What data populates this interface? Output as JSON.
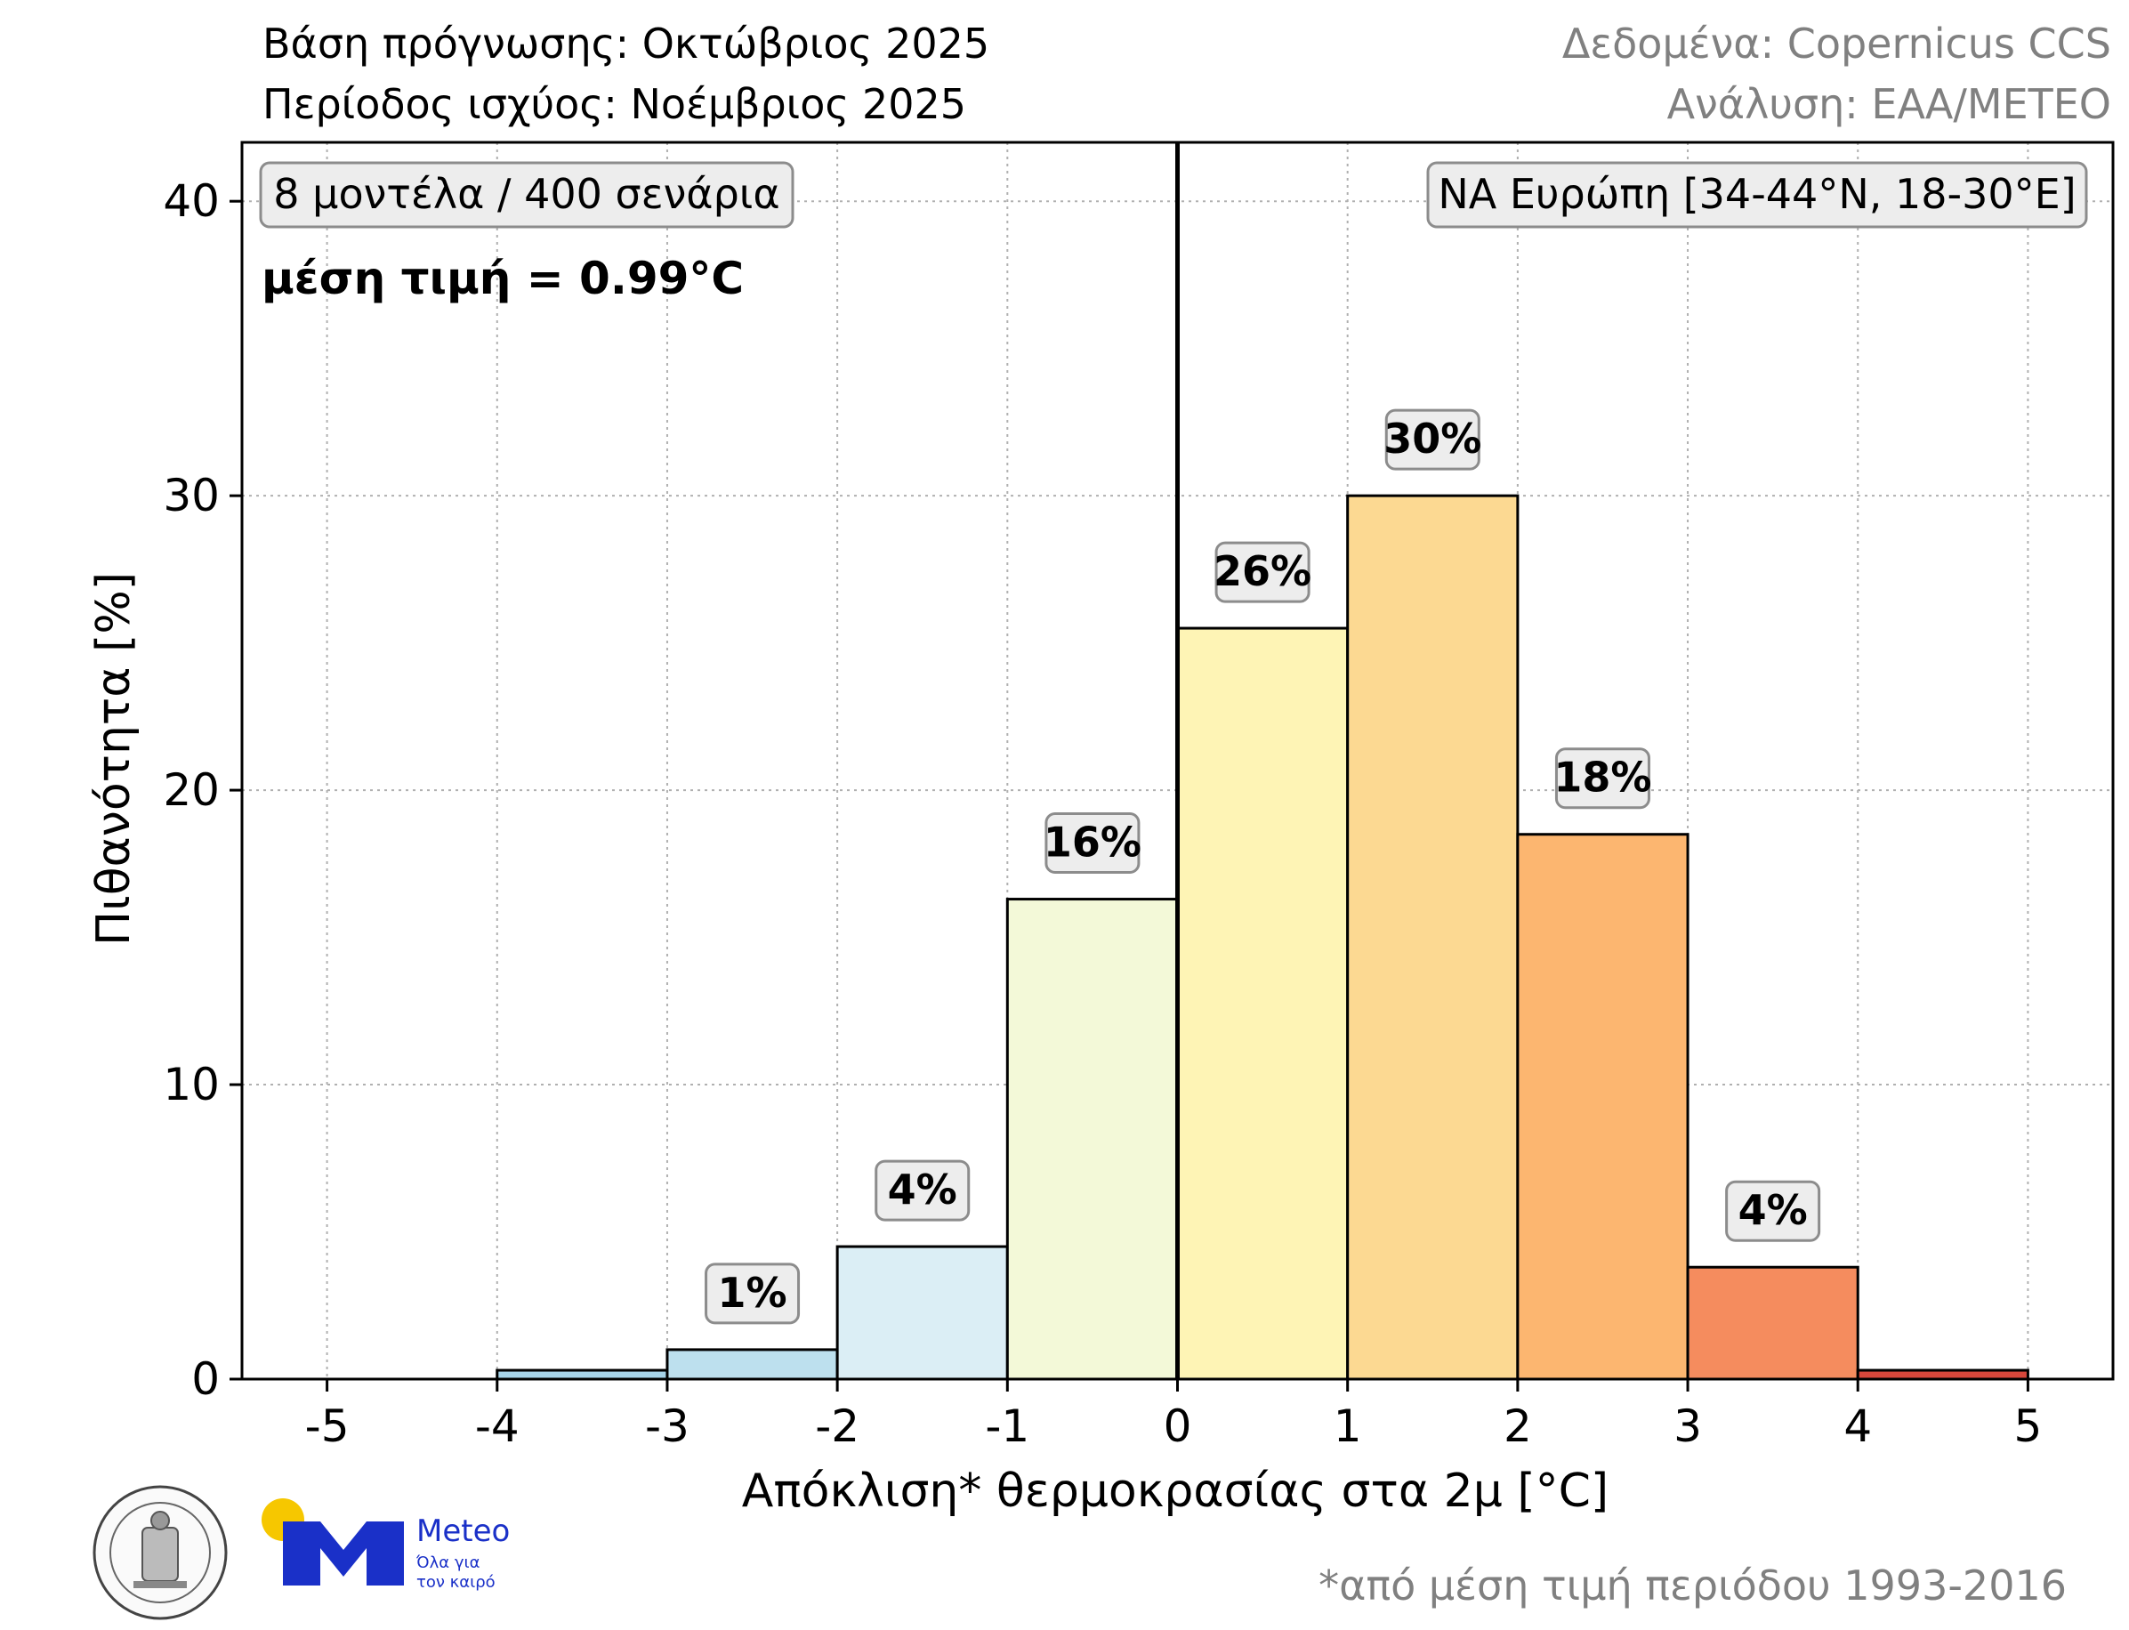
{
  "header": {
    "forecast_base": "Βάση πρόγνωσης: Οκτώβριος 2025",
    "valid_period": "Περίοδος ισχύος: Νοέμβριος 2025",
    "data_source": "Δεδομένα: Copernicus CCS",
    "analysis": "Ανάλυση: ΕΑΑ/ΜΕΤΕΟ"
  },
  "annotations": {
    "ensemble": "8 μοντέλα / 400 σενάρια",
    "mean": "μέση τιμή = 0.99°C",
    "region": "ΝΑ Ευρώπη [34-44°N, 18-30°E]"
  },
  "footnote": "*από μέση τιμή περιόδου 1993-2016",
  "logos": {
    "meteo_name": "Meteo",
    "meteo_tagline_1": "Όλα για",
    "meteo_tagline_2": "τον καιρό"
  },
  "chart_data": {
    "type": "bar",
    "xlabel": "Απόκλιση* θερμοκρασίας στα 2μ [°C]",
    "ylabel": "Πιθανότητα [%]",
    "xlim": [
      -5.5,
      5.5
    ],
    "ylim": [
      0,
      42
    ],
    "xticks": [
      -5,
      -4,
      -3,
      -2,
      -1,
      0,
      1,
      2,
      3,
      4,
      5
    ],
    "xtick_labels": [
      "-5",
      "-4",
      "-3",
      "-2",
      "-1",
      "0",
      "1",
      "2",
      "3",
      "4",
      "5"
    ],
    "yticks": [
      0,
      10,
      20,
      30,
      40
    ],
    "ytick_labels": [
      "0",
      "10",
      "20",
      "30",
      "40"
    ],
    "grid": true,
    "vertical_line_at": 0,
    "bins": [
      {
        "from": -4,
        "to": -3,
        "value": 0.3,
        "label": "",
        "color": "#a6d3e8"
      },
      {
        "from": -3,
        "to": -2,
        "value": 1.0,
        "label": "1%",
        "color": "#bde0ee"
      },
      {
        "from": -2,
        "to": -1,
        "value": 4.5,
        "label": "4%",
        "color": "#dbeef5"
      },
      {
        "from": -1,
        "to": 0,
        "value": 16.3,
        "label": "16%",
        "color": "#f3f9d8"
      },
      {
        "from": 0,
        "to": 1,
        "value": 25.5,
        "label": "26%",
        "color": "#fef4b5"
      },
      {
        "from": 1,
        "to": 2,
        "value": 30.0,
        "label": "30%",
        "color": "#fcd992"
      },
      {
        "from": 2,
        "to": 3,
        "value": 18.5,
        "label": "18%",
        "color": "#fcb670"
      },
      {
        "from": 3,
        "to": 4,
        "value": 3.8,
        "label": "4%",
        "color": "#f58c5e"
      },
      {
        "from": 4,
        "to": 5,
        "value": 0.3,
        "label": "",
        "color": "#d7473b"
      }
    ]
  }
}
